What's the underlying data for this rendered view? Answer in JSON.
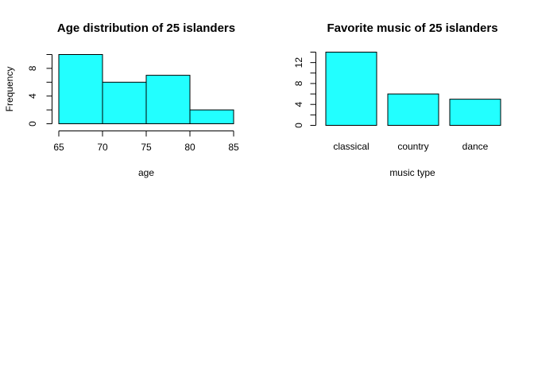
{
  "colors": {
    "bar_fill": "#22ffff",
    "stroke": "#000000"
  },
  "chart_data": [
    {
      "type": "bar",
      "subtype": "histogram",
      "title": "Age distribution of 25 islanders",
      "xlabel": "age",
      "ylabel": "Frequency",
      "bins": [
        [
          65,
          70
        ],
        [
          70,
          75
        ],
        [
          75,
          80
        ],
        [
          80,
          85
        ]
      ],
      "values": [
        10,
        6,
        7,
        2
      ],
      "xlim": [
        65,
        85
      ],
      "ylim": [
        0,
        10
      ],
      "xticks": [
        65,
        70,
        75,
        80,
        85
      ],
      "yticks": [
        0,
        4,
        8
      ],
      "grid": false
    },
    {
      "type": "bar",
      "title": "Favorite music of 25 islanders",
      "xlabel": "music type",
      "ylabel": "",
      "categories": [
        "classical",
        "country",
        "dance"
      ],
      "values": [
        14,
        6,
        5
      ],
      "ylim": [
        0,
        14
      ],
      "yticks": [
        0,
        4,
        8,
        12
      ],
      "grid": false
    }
  ]
}
